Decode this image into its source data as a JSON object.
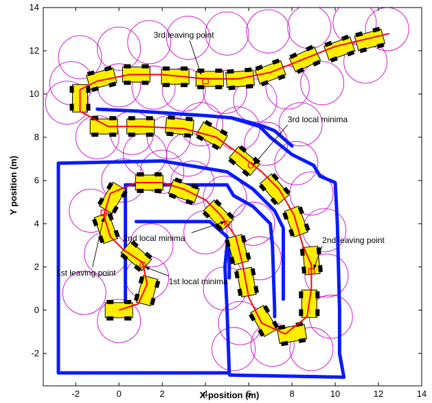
{
  "chart_data": {
    "type": "scatter",
    "xlabel": "X position (m)",
    "ylabel": "Y position (m)",
    "xlim": [
      -3.5,
      14
    ],
    "ylim": [
      -3.5,
      14
    ],
    "x_ticks": [
      -2,
      0,
      2,
      4,
      6,
      8,
      10,
      12,
      14
    ],
    "y_ticks": [
      -2,
      0,
      2,
      4,
      6,
      8,
      10,
      12,
      14
    ],
    "grid": false,
    "colors": {
      "walls": "#0a1aff",
      "path": "#ff0000",
      "circles": "#cc00cc",
      "robot_body": "#ffee00",
      "robot_wheel": "#000000",
      "markers": "#ff0000"
    },
    "walls": [
      {
        "points": [
          [
            0.3,
            -0.2
          ],
          [
            0.3,
            5.8
          ],
          [
            5.0,
            5.8
          ],
          [
            5.3,
            5.3
          ],
          [
            6.2,
            4.8
          ],
          [
            7.0,
            4.0
          ],
          [
            7.1,
            3.0
          ],
          [
            7.2,
            0.0
          ],
          [
            7.2,
            -0.3
          ]
        ]
      },
      {
        "points": [
          [
            0.8,
            4.1
          ],
          [
            4.2,
            4.1
          ],
          [
            5.0,
            3.4
          ],
          [
            5.1,
            2.5
          ],
          [
            5.1,
            1.5
          ]
        ]
      },
      {
        "points": [
          [
            -2.8,
            -2.9
          ],
          [
            -2.8,
            6.8
          ],
          [
            2.0,
            6.9
          ],
          [
            5.0,
            6.4
          ],
          [
            6.2,
            5.6
          ],
          [
            7.2,
            4.6
          ],
          [
            7.6,
            3.8
          ],
          [
            7.6,
            1.5
          ],
          [
            7.6,
            0.5
          ]
        ]
      },
      {
        "points": [
          [
            -2.8,
            -2.9
          ],
          [
            5.1,
            -2.9
          ],
          [
            5.0,
            0.0
          ],
          [
            4.9,
            2.0
          ],
          [
            5.0,
            3.0
          ]
        ]
      },
      {
        "points": [
          [
            -1.0,
            9.3
          ],
          [
            1.0,
            9.2
          ],
          [
            4.0,
            9.0
          ],
          [
            5.2,
            8.9
          ],
          [
            6.5,
            8.5
          ],
          [
            7.0,
            8.0
          ],
          [
            8.0,
            7.2
          ],
          [
            9.0,
            6.7
          ],
          [
            9.3,
            6.2
          ],
          [
            10.0,
            5.9
          ],
          [
            10.1,
            4.0
          ],
          [
            10.2,
            0.0
          ],
          [
            10.2,
            -2.0
          ],
          [
            10.4,
            -3.1
          ],
          [
            5.1,
            -3.0
          ]
        ]
      },
      {
        "points": [
          [
            5.2,
            8.9
          ],
          [
            6.0,
            8.7
          ],
          [
            6.7,
            8.5
          ],
          [
            7.2,
            8.3
          ],
          [
            8.0,
            7.6
          ]
        ]
      }
    ],
    "path": [
      {
        "x": 0.0,
        "y": 0.0
      },
      {
        "x": 0.9,
        "y": 0.3
      },
      {
        "x": 1.3,
        "y": 1.2
      },
      {
        "x": 1.1,
        "y": 2.2
      },
      {
        "x": 0.2,
        "y": 2.8
      },
      {
        "x": -0.4,
        "y": 3.4
      },
      {
        "x": -0.7,
        "y": 4.4
      },
      {
        "x": -0.4,
        "y": 5.4
      },
      {
        "x": 0.8,
        "y": 5.9
      },
      {
        "x": 2.0,
        "y": 5.9
      },
      {
        "x": 3.0,
        "y": 5.6
      },
      {
        "x": 4.0,
        "y": 5.1
      },
      {
        "x": 4.7,
        "y": 4.4
      },
      {
        "x": 5.4,
        "y": 3.4
      },
      {
        "x": 5.7,
        "y": 2.2
      },
      {
        "x": 6.0,
        "y": 0.6
      },
      {
        "x": 6.6,
        "y": -0.6
      },
      {
        "x": 7.7,
        "y": -1.1
      },
      {
        "x": 8.7,
        "y": -0.3
      },
      {
        "x": 8.9,
        "y": 1.0
      },
      {
        "x": 8.9,
        "y": 2.1
      },
      {
        "x": 8.5,
        "y": 3.0
      },
      {
        "x": 8.1,
        "y": 4.4
      },
      {
        "x": 7.4,
        "y": 5.6
      },
      {
        "x": 6.6,
        "y": 6.4
      },
      {
        "x": 5.6,
        "y": 7.2
      },
      {
        "x": 4.5,
        "y": 8.0
      },
      {
        "x": 3.0,
        "y": 8.4
      },
      {
        "x": 1.0,
        "y": 8.5
      },
      {
        "x": -0.5,
        "y": 8.5
      },
      {
        "x": -1.8,
        "y": 9.2
      },
      {
        "x": -1.8,
        "y": 10.2
      },
      {
        "x": -1.0,
        "y": 10.6
      },
      {
        "x": 0.5,
        "y": 10.9
      },
      {
        "x": 2.0,
        "y": 10.9
      },
      {
        "x": 4.0,
        "y": 10.7
      },
      {
        "x": 5.5,
        "y": 10.7
      },
      {
        "x": 7.0,
        "y": 11.0
      },
      {
        "x": 8.5,
        "y": 11.6
      },
      {
        "x": 10.0,
        "y": 12.2
      },
      {
        "x": 12.5,
        "y": 12.8
      }
    ],
    "robot_poses": [
      {
        "x": 0.0,
        "y": 0.0,
        "heading_deg": 0
      },
      {
        "x": 1.3,
        "y": 0.9,
        "heading_deg": 75
      },
      {
        "x": 0.8,
        "y": 2.5,
        "heading_deg": 140
      },
      {
        "x": -0.6,
        "y": 3.8,
        "heading_deg": 110
      },
      {
        "x": -0.3,
        "y": 5.2,
        "heading_deg": 60
      },
      {
        "x": 1.4,
        "y": 5.9,
        "heading_deg": 0
      },
      {
        "x": 3.0,
        "y": 5.5,
        "heading_deg": -20
      },
      {
        "x": 4.6,
        "y": 4.4,
        "heading_deg": -45
      },
      {
        "x": 5.5,
        "y": 2.8,
        "heading_deg": -75
      },
      {
        "x": 5.9,
        "y": 1.3,
        "heading_deg": -80
      },
      {
        "x": 6.7,
        "y": -0.5,
        "heading_deg": -60
      },
      {
        "x": 8.0,
        "y": -1.1,
        "heading_deg": 10
      },
      {
        "x": 8.8,
        "y": 0.3,
        "heading_deg": 90
      },
      {
        "x": 8.9,
        "y": 2.3,
        "heading_deg": 95
      },
      {
        "x": 8.2,
        "y": 4.1,
        "heading_deg": 110
      },
      {
        "x": 7.2,
        "y": 5.6,
        "heading_deg": 130
      },
      {
        "x": 5.8,
        "y": 6.9,
        "heading_deg": 140
      },
      {
        "x": 4.3,
        "y": 8.1,
        "heading_deg": 150
      },
      {
        "x": 2.8,
        "y": 8.5,
        "heading_deg": 175
      },
      {
        "x": 1.0,
        "y": 8.5,
        "heading_deg": 180
      },
      {
        "x": -0.7,
        "y": 8.5,
        "heading_deg": 180
      },
      {
        "x": -1.8,
        "y": 9.8,
        "heading_deg": 90
      },
      {
        "x": -0.8,
        "y": 10.7,
        "heading_deg": 15
      },
      {
        "x": 0.8,
        "y": 10.9,
        "heading_deg": 0
      },
      {
        "x": 2.6,
        "y": 10.8,
        "heading_deg": 0
      },
      {
        "x": 4.2,
        "y": 10.7,
        "heading_deg": 0
      },
      {
        "x": 5.6,
        "y": 10.7,
        "heading_deg": 5
      },
      {
        "x": 7.0,
        "y": 11.0,
        "heading_deg": 20
      },
      {
        "x": 8.6,
        "y": 11.6,
        "heading_deg": 25
      },
      {
        "x": 10.2,
        "y": 12.1,
        "heading_deg": 20
      },
      {
        "x": 11.6,
        "y": 12.5,
        "heading_deg": 15
      }
    ],
    "circles": [
      {
        "x": 0.0,
        "y": -0.5,
        "r": 1.0
      },
      {
        "x": -1.6,
        "y": 0.8,
        "r": 1.0
      },
      {
        "x": 1.3,
        "y": 1.5,
        "r": 1.0
      },
      {
        "x": -0.6,
        "y": 2.6,
        "r": 1.0
      },
      {
        "x": 1.5,
        "y": 3.0,
        "r": 1.0
      },
      {
        "x": -1.3,
        "y": 4.6,
        "r": 1.0
      },
      {
        "x": 0.2,
        "y": 6.0,
        "r": 1.0
      },
      {
        "x": 2.0,
        "y": 6.4,
        "r": 1.0
      },
      {
        "x": 3.4,
        "y": 5.9,
        "r": 1.0
      },
      {
        "x": 4.9,
        "y": 5.2,
        "r": 1.0
      },
      {
        "x": 4.0,
        "y": 3.6,
        "r": 1.0
      },
      {
        "x": 6.2,
        "y": 4.0,
        "r": 1.0
      },
      {
        "x": 6.5,
        "y": 2.4,
        "r": 1.0
      },
      {
        "x": 4.9,
        "y": 1.0,
        "r": 1.0
      },
      {
        "x": 5.6,
        "y": -0.6,
        "r": 1.0
      },
      {
        "x": 5.3,
        "y": -1.8,
        "r": 1.0
      },
      {
        "x": 7.1,
        "y": -1.6,
        "r": 1.0
      },
      {
        "x": 8.9,
        "y": -1.8,
        "r": 1.0
      },
      {
        "x": 9.8,
        "y": -0.3,
        "r": 1.0
      },
      {
        "x": 9.6,
        "y": 1.6,
        "r": 1.0
      },
      {
        "x": 9.5,
        "y": 3.7,
        "r": 1.0
      },
      {
        "x": 8.9,
        "y": 5.4,
        "r": 1.0
      },
      {
        "x": 8.2,
        "y": 6.8,
        "r": 1.0
      },
      {
        "x": 6.8,
        "y": 7.7,
        "r": 1.0
      },
      {
        "x": 5.5,
        "y": 8.4,
        "r": 1.0
      },
      {
        "x": 3.8,
        "y": 8.6,
        "r": 1.0
      },
      {
        "x": 2.3,
        "y": 8.0,
        "r": 1.0
      },
      {
        "x": 0.6,
        "y": 8.2,
        "r": 1.0
      },
      {
        "x": -1.0,
        "y": 8.0,
        "r": 1.0
      },
      {
        "x": -2.4,
        "y": 9.6,
        "r": 1.0
      },
      {
        "x": -1.8,
        "y": 11.7,
        "r": 1.0
      },
      {
        "x": 0.0,
        "y": 12.1,
        "r": 1.0
      },
      {
        "x": 1.4,
        "y": 12.4,
        "r": 1.0
      },
      {
        "x": 3.2,
        "y": 12.6,
        "r": 1.0
      },
      {
        "x": 5.0,
        "y": 12.8,
        "r": 1.0
      },
      {
        "x": 6.9,
        "y": 12.9,
        "r": 1.0
      },
      {
        "x": 8.8,
        "y": 13.1,
        "r": 1.0
      },
      {
        "x": 10.9,
        "y": 13.3,
        "r": 1.0
      },
      {
        "x": 12.4,
        "y": 13.0,
        "r": 1.0
      },
      {
        "x": 11.4,
        "y": 11.5,
        "r": 1.0
      },
      {
        "x": 9.4,
        "y": 10.5,
        "r": 1.0
      },
      {
        "x": 7.8,
        "y": 10.3,
        "r": 1.0
      },
      {
        "x": 6.3,
        "y": 9.7,
        "r": 1.0
      },
      {
        "x": 4.9,
        "y": 10.1,
        "r": 1.0
      },
      {
        "x": 3.0,
        "y": 10.2,
        "r": 1.0
      },
      {
        "x": 1.6,
        "y": 10.3,
        "r": 1.0
      },
      {
        "x": 0.0,
        "y": 10.4,
        "r": 1.0
      },
      {
        "x": -2.2,
        "y": 10.5,
        "r": 1.0
      },
      {
        "x": 8.4,
        "y": 8.6,
        "r": 1.0
      },
      {
        "x": 3.2,
        "y": 7.2,
        "r": 1.0
      },
      {
        "x": 1.2,
        "y": 7.2,
        "r": 1.0
      }
    ],
    "markers": [
      {
        "x": -0.7,
        "y": 4.5,
        "shape": "square"
      },
      {
        "x": 8.9,
        "y": 1.8,
        "shape": "square"
      },
      {
        "x": 4.0,
        "y": 10.6,
        "shape": "square"
      },
      {
        "x": 1.1,
        "y": 2.1,
        "shape": "circle"
      },
      {
        "x": 5.0,
        "y": 4.0,
        "shape": "circle"
      },
      {
        "x": 6.1,
        "y": 6.7,
        "shape": "circle"
      }
    ],
    "annotations": [
      {
        "text": "3rd leaving point",
        "x": 1.6,
        "y": 12.6,
        "arrow_to": [
          3.8,
          10.9
        ]
      },
      {
        "text": "3rd local minima",
        "x": 7.8,
        "y": 8.7,
        "arrow_to": [
          6.2,
          6.7
        ]
      },
      {
        "text": "2nd local minima",
        "x": 0.2,
        "y": 3.2,
        "arrow_to": [
          4.9,
          4.1
        ]
      },
      {
        "text": "2nd leaving point",
        "x": 9.4,
        "y": 3.1,
        "arrow_to": [
          9.0,
          1.9
        ]
      },
      {
        "text": "1st leaving point",
        "x": -2.9,
        "y": 1.6,
        "arrow_to": [
          -0.7,
          4.3
        ]
      },
      {
        "text": "1st local minima",
        "x": 2.3,
        "y": 1.2,
        "arrow_to": [
          1.2,
          2.0
        ]
      }
    ]
  }
}
